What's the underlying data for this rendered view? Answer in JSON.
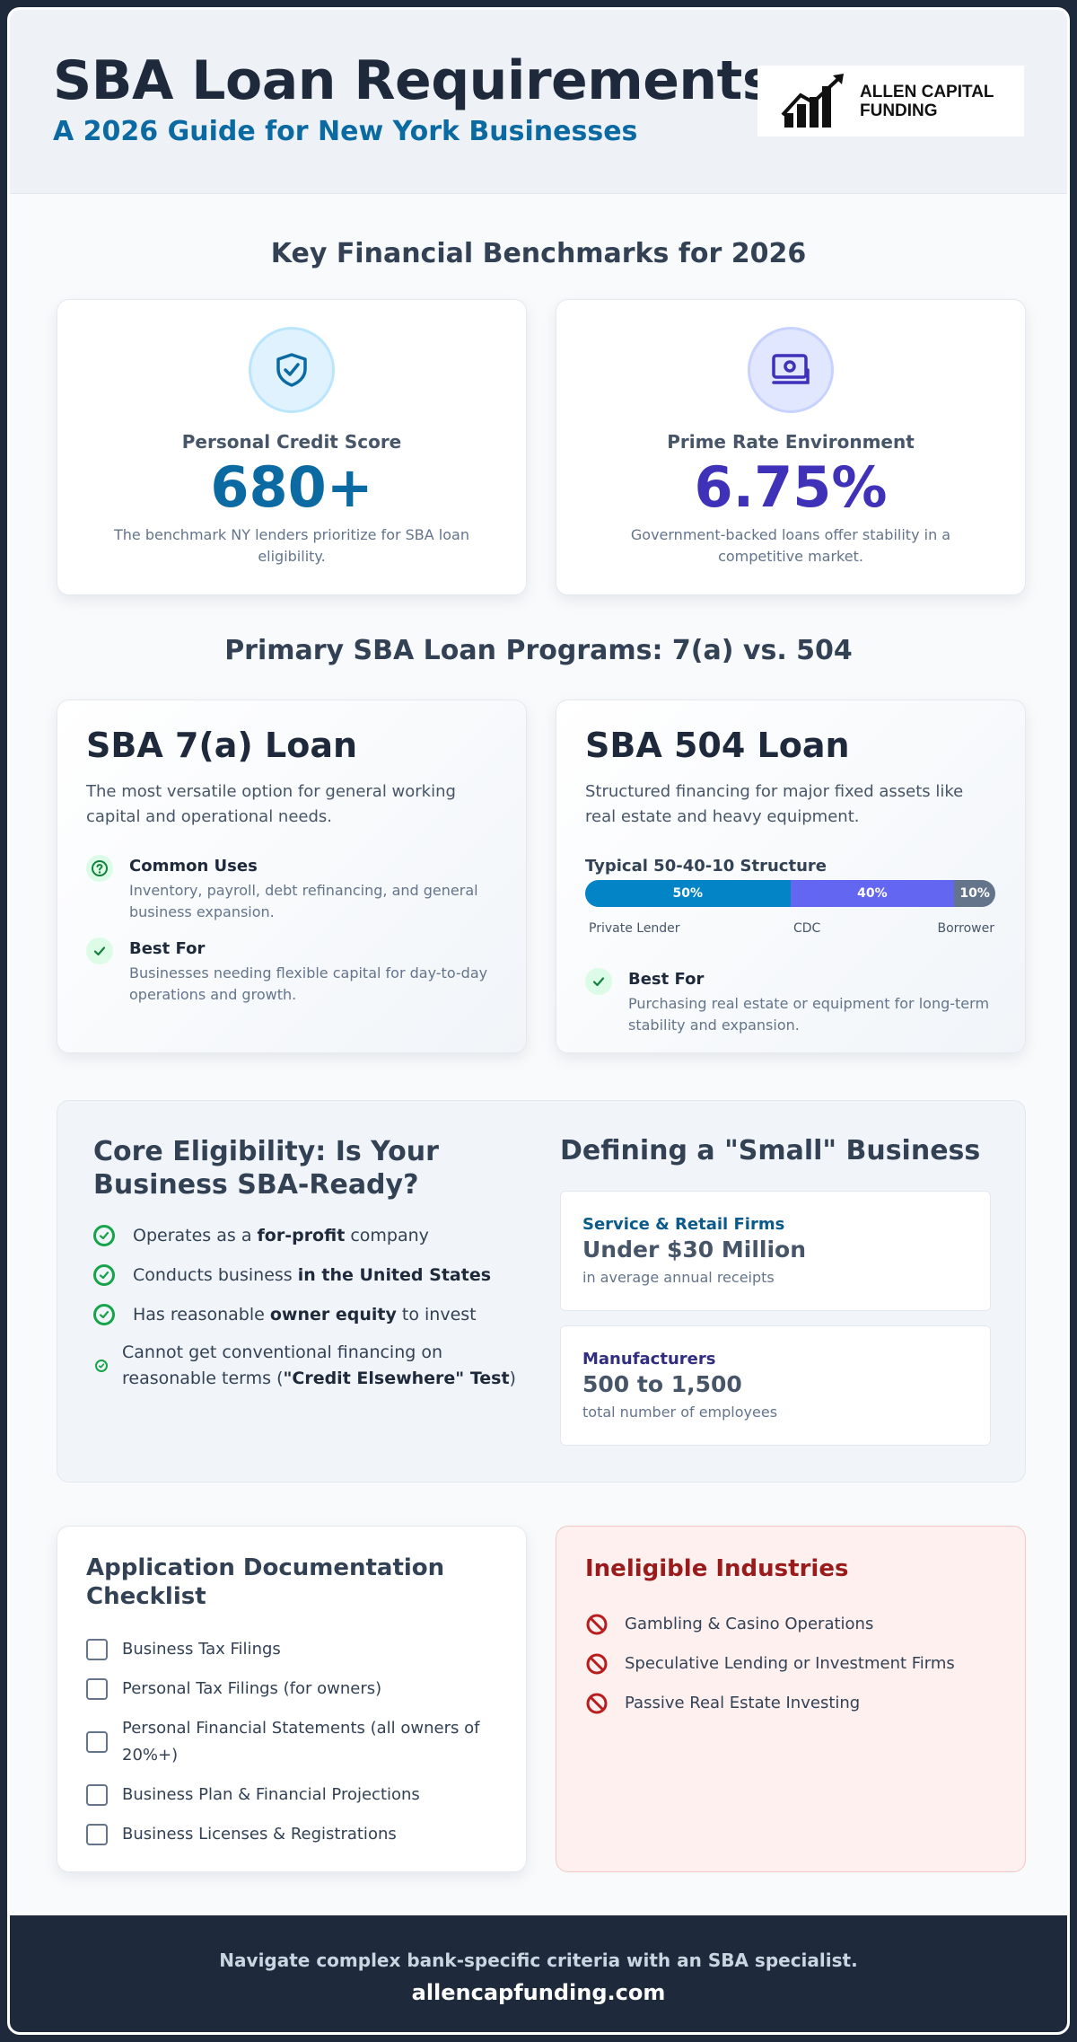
{
  "header": {
    "title": "SBA Loan Requirements",
    "subtitle": "A 2026 Guide for New York Businesses",
    "logo_text": "ALLEN CAPITAL FUNDING"
  },
  "benchmarks": {
    "title": "Key Financial Benchmarks for 2026",
    "credit": {
      "icon": "shield-check-icon",
      "label": "Personal Credit Score",
      "value": "680+",
      "description": "The benchmark NY lenders prioritize for SBA loan eligibility.",
      "color": "#0b6aa2"
    },
    "prime": {
      "icon": "money-icon",
      "label": "Prime Rate Environment",
      "value": "6.75%",
      "description": "Government-backed loans offer stability in a competitive market.",
      "color": "#3f31b8"
    }
  },
  "programs": {
    "title": "Primary SBA Loan Programs: 7(a) vs. 504",
    "loan_7a": {
      "title": "SBA 7(a) Loan",
      "description": "The most versatile option for general working capital and operational needs.",
      "uses_title": "Common Uses",
      "uses_desc": "Inventory, payroll, debt refinancing, and general business expansion.",
      "best_title": "Best For",
      "best_desc": "Businesses needing flexible capital for day-to-day operations and growth."
    },
    "loan_504": {
      "title": "SBA 504 Loan",
      "description": "Structured financing for major fixed assets like real estate and heavy equipment.",
      "structure_title": "Typical 50-40-10 Structure",
      "structure": [
        {
          "label": "50%",
          "name": "Private Lender",
          "share": 0.5,
          "color": "#0284c7"
        },
        {
          "label": "40%",
          "name": "CDC",
          "share": 0.4,
          "color": "#6366f1"
        },
        {
          "label": "10%",
          "name": "Borrower",
          "share": 0.1,
          "color": "#64748b"
        }
      ],
      "best_title": "Best For",
      "best_desc": "Purchasing real estate or equipment for long-term stability and expansion."
    }
  },
  "eligibility": {
    "title": "Core Eligibility: Is Your Business SBA-Ready?",
    "criteria": [
      {
        "before": "Operates as a ",
        "bold": "for-profit",
        "after": " company"
      },
      {
        "before": "Conducts business ",
        "bold": "in the United States",
        "after": ""
      },
      {
        "before": "Has reasonable ",
        "bold": "owner equity",
        "after": " to invest"
      },
      {
        "before": "Cannot get conventional financing on reasonable terms (",
        "bold": "\"Credit Elsewhere\" Test",
        "after": ")"
      }
    ]
  },
  "small_business": {
    "title": "Defining a \"Small\" Business",
    "service": {
      "category": "Service & Retail Firms",
      "value": "Under $30 Million",
      "note": "in average annual receipts",
      "color": "#0b5a8a"
    },
    "manufacturers": {
      "category": "Manufacturers",
      "value": "500 to 1,500",
      "note": "total number of employees",
      "color": "#312e81"
    }
  },
  "checklist": {
    "title": "Application Documentation Checklist",
    "items": [
      "Business Tax Filings",
      "Personal Tax Filings (for owners)",
      "Personal Financial Statements (all owners of 20%+)",
      "Business Plan & Financial Projections",
      "Business Licenses & Registrations"
    ]
  },
  "ineligible": {
    "title": "Ineligible Industries",
    "items": [
      "Gambling & Casino Operations",
      "Speculative Lending or Investment Firms",
      "Passive Real Estate Investing"
    ]
  },
  "footer": {
    "tagline": "Navigate complex bank-specific criteria with an SBA specialist.",
    "url": "allencapfunding.com"
  }
}
